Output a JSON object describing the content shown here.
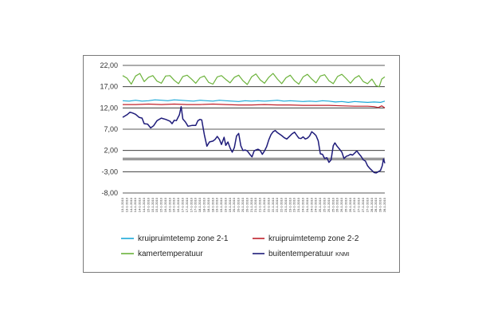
{
  "chart_data": {
    "type": "line",
    "title": "",
    "xlabel": "",
    "ylabel": "",
    "ylim": [
      -8,
      22
    ],
    "yticks": [
      "22,00",
      "17,00",
      "12,00",
      "7,00",
      "2,00",
      "-3,00",
      "-8,00"
    ],
    "ytick_values": [
      22,
      17,
      12,
      7,
      2,
      -3,
      -8
    ],
    "grid": "horizontal",
    "zero_band": 0,
    "x_start": "13-1-2010",
    "x_end": "28-1-2010",
    "x_dates": [
      "13-1-2010",
      "13-1-2010",
      "14-1-2010",
      "14-1-2010",
      "14-1-2010",
      "14-1-2010",
      "15-1-2010",
      "15-1-2010",
      "15-1-2010",
      "15-1-2010",
      "16-1-2010",
      "16-1-2010",
      "16-1-2010",
      "16-1-2010",
      "17-1-2010",
      "17-1-2010",
      "17-1-2010",
      "17-1-2010",
      "18-1-2010",
      "18-1-2010",
      "18-1-2010",
      "18-1-2010",
      "19-1-2010",
      "19-1-2010",
      "19-1-2010",
      "19-1-2010",
      "20-1-2010",
      "20-1-2010",
      "20-1-2010",
      "20-1-2010",
      "21-1-2010",
      "21-1-2010",
      "21-1-2010",
      "21-1-2010",
      "22-1-2010",
      "22-1-2010",
      "22-1-2010",
      "22-1-2010",
      "23-1-2010",
      "23-1-2010",
      "23-1-2010",
      "23-1-2010",
      "24-1-2010",
      "24-1-2010",
      "24-1-2010",
      "24-1-2010",
      "25-1-2010",
      "25-1-2010",
      "25-1-2010",
      "25-1-2010",
      "26-1-2010",
      "26-1-2010",
      "26-1-2010",
      "26-1-2010",
      "27-1-2010",
      "27-1-2010",
      "27-1-2010",
      "27-1-2010",
      "28-1-2010",
      "28-1-2010",
      "28-1-2010",
      "28-1-2010"
    ],
    "series": [
      {
        "name": "kruipruimtetemp zone 2-1",
        "color": "#1aa8d8",
        "points": [
          [
            0,
            13.7
          ],
          [
            1.5,
            13.6
          ],
          [
            3,
            13.8
          ],
          [
            4.5,
            13.6
          ],
          [
            6,
            13.7
          ],
          [
            7.5,
            13.9
          ],
          [
            9,
            13.8
          ],
          [
            10.5,
            13.7
          ],
          [
            12,
            13.9
          ],
          [
            13.5,
            13.8
          ],
          [
            15,
            13.7
          ],
          [
            16.5,
            13.6
          ],
          [
            18,
            13.8
          ],
          [
            19.5,
            13.7
          ],
          [
            21,
            13.6
          ],
          [
            22.5,
            13.8
          ],
          [
            24,
            13.7
          ],
          [
            25.5,
            13.6
          ],
          [
            27,
            13.5
          ],
          [
            28.5,
            13.7
          ],
          [
            30,
            13.6
          ],
          [
            31.5,
            13.7
          ],
          [
            33,
            13.6
          ],
          [
            34.5,
            13.7
          ],
          [
            36,
            13.8
          ],
          [
            37.5,
            13.6
          ],
          [
            39,
            13.7
          ],
          [
            40.5,
            13.6
          ],
          [
            42,
            13.5
          ],
          [
            43.5,
            13.6
          ],
          [
            45,
            13.5
          ],
          [
            46.5,
            13.7
          ],
          [
            48,
            13.6
          ],
          [
            49.5,
            13.4
          ],
          [
            51,
            13.5
          ],
          [
            52.5,
            13.3
          ],
          [
            54,
            13.5
          ],
          [
            55.5,
            13.4
          ],
          [
            57,
            13.3
          ],
          [
            58.5,
            13.4
          ],
          [
            60,
            13.3
          ],
          [
            61,
            13.6
          ]
        ]
      },
      {
        "name": "kruipruimtetemp zone 2-2",
        "color": "#c0202a",
        "points": [
          [
            0,
            12.8
          ],
          [
            3,
            12.8
          ],
          [
            6,
            12.9
          ],
          [
            9,
            12.8
          ],
          [
            12,
            12.9
          ],
          [
            15,
            12.8
          ],
          [
            18,
            12.8
          ],
          [
            21,
            12.9
          ],
          [
            24,
            12.8
          ],
          [
            27,
            12.7
          ],
          [
            30,
            12.7
          ],
          [
            33,
            12.8
          ],
          [
            36,
            12.7
          ],
          [
            39,
            12.7
          ],
          [
            42,
            12.6
          ],
          [
            45,
            12.6
          ],
          [
            48,
            12.6
          ],
          [
            51,
            12.5
          ],
          [
            54,
            12.4
          ],
          [
            57,
            12.4
          ],
          [
            58.5,
            12.3
          ],
          [
            59.5,
            12.1
          ],
          [
            60.3,
            12.5
          ],
          [
            61,
            12.0
          ]
        ]
      },
      {
        "name": "kamertemperatuur",
        "color": "#6bb23a",
        "points": [
          [
            0,
            19.6
          ],
          [
            1,
            19.0
          ],
          [
            2,
            17.6
          ],
          [
            3,
            19.5
          ],
          [
            4,
            20.1
          ],
          [
            5,
            18.2
          ],
          [
            6,
            19.2
          ],
          [
            7,
            19.6
          ],
          [
            8,
            18.3
          ],
          [
            9,
            17.8
          ],
          [
            10,
            19.5
          ],
          [
            11,
            19.6
          ],
          [
            12,
            18.5
          ],
          [
            13,
            17.7
          ],
          [
            14,
            19.4
          ],
          [
            15,
            19.7
          ],
          [
            16,
            18.8
          ],
          [
            17,
            17.8
          ],
          [
            18,
            19.1
          ],
          [
            19,
            19.5
          ],
          [
            20,
            18.0
          ],
          [
            21,
            17.6
          ],
          [
            22,
            19.3
          ],
          [
            23,
            19.6
          ],
          [
            24,
            18.7
          ],
          [
            25,
            17.9
          ],
          [
            26,
            19.2
          ],
          [
            27,
            19.7
          ],
          [
            28,
            18.4
          ],
          [
            29,
            17.5
          ],
          [
            30,
            19.3
          ],
          [
            31,
            20.0
          ],
          [
            32,
            18.6
          ],
          [
            33,
            17.8
          ],
          [
            34,
            19.2
          ],
          [
            35,
            20.1
          ],
          [
            36,
            18.8
          ],
          [
            37,
            17.7
          ],
          [
            38,
            19.1
          ],
          [
            39,
            19.7
          ],
          [
            40,
            18.4
          ],
          [
            41,
            17.6
          ],
          [
            42,
            19.3
          ],
          [
            43,
            19.9
          ],
          [
            44,
            18.8
          ],
          [
            45,
            17.9
          ],
          [
            46,
            19.5
          ],
          [
            47,
            19.8
          ],
          [
            48,
            18.4
          ],
          [
            49,
            17.7
          ],
          [
            50,
            19.4
          ],
          [
            51,
            19.9
          ],
          [
            52,
            18.9
          ],
          [
            53,
            17.8
          ],
          [
            54,
            19.0
          ],
          [
            55,
            19.6
          ],
          [
            56,
            18.2
          ],
          [
            57,
            17.7
          ],
          [
            58,
            18.8
          ],
          [
            59,
            17.2
          ],
          [
            59.7,
            17.0
          ],
          [
            60.3,
            18.8
          ],
          [
            61,
            19.3
          ]
        ]
      },
      {
        "name": "buitentemperatuur KNMI",
        "color": "#1e1b7a",
        "points": [
          [
            0,
            9.8
          ],
          [
            1,
            10.4
          ],
          [
            1.7,
            11.0
          ],
          [
            2.3,
            10.8
          ],
          [
            3,
            10.5
          ],
          [
            3.8,
            9.8
          ],
          [
            4.5,
            9.6
          ],
          [
            5,
            8.3
          ],
          [
            5.8,
            8.2
          ],
          [
            6.5,
            7.3
          ],
          [
            7.2,
            7.8
          ],
          [
            8,
            9.0
          ],
          [
            9,
            9.6
          ],
          [
            10,
            9.3
          ],
          [
            11,
            8.9
          ],
          [
            11.5,
            8.3
          ],
          [
            12,
            9.1
          ],
          [
            12.5,
            9.0
          ],
          [
            13.2,
            10.4
          ],
          [
            13.6,
            12.3
          ],
          [
            14,
            9.4
          ],
          [
            14.6,
            8.7
          ],
          [
            15.2,
            7.7
          ],
          [
            16.2,
            7.9
          ],
          [
            17,
            7.9
          ],
          [
            17.5,
            9.0
          ],
          [
            18,
            9.3
          ],
          [
            18.4,
            9.2
          ],
          [
            19,
            5.7
          ],
          [
            19.6,
            3.0
          ],
          [
            20.2,
            4.0
          ],
          [
            21,
            4.2
          ],
          [
            21.5,
            4.6
          ],
          [
            22,
            5.3
          ],
          [
            22.5,
            4.6
          ],
          [
            23,
            3.4
          ],
          [
            23.6,
            5.1
          ],
          [
            24,
            3.2
          ],
          [
            24.5,
            4.0
          ],
          [
            25,
            2.6
          ],
          [
            25.5,
            1.6
          ],
          [
            26,
            2.7
          ],
          [
            26.5,
            5.4
          ],
          [
            27,
            6.0
          ],
          [
            27.5,
            3.1
          ],
          [
            28,
            2.0
          ],
          [
            28.5,
            2.1
          ],
          [
            29,
            1.9
          ],
          [
            29.6,
            1.1
          ],
          [
            30.1,
            0.5
          ],
          [
            30.6,
            1.9
          ],
          [
            31,
            2.1
          ],
          [
            31.5,
            2.3
          ],
          [
            32,
            2.0
          ],
          [
            32.5,
            1.1
          ],
          [
            33,
            1.9
          ],
          [
            33.5,
            2.9
          ],
          [
            34,
            4.5
          ],
          [
            34.5,
            5.7
          ],
          [
            35,
            6.4
          ],
          [
            35.5,
            6.7
          ],
          [
            36,
            6.2
          ],
          [
            37,
            5.5
          ],
          [
            37.6,
            5.0
          ],
          [
            38.2,
            4.7
          ],
          [
            38.8,
            5.3
          ],
          [
            39.4,
            5.9
          ],
          [
            40,
            6.3
          ],
          [
            40.5,
            5.6
          ],
          [
            41,
            4.9
          ],
          [
            41.5,
            4.8
          ],
          [
            42,
            5.2
          ],
          [
            42.5,
            4.7
          ],
          [
            43,
            4.9
          ],
          [
            43.5,
            5.4
          ],
          [
            44,
            6.4
          ],
          [
            44.5,
            6.0
          ],
          [
            45,
            5.5
          ],
          [
            45.5,
            4.3
          ],
          [
            46,
            1.2
          ],
          [
            46.5,
            1.1
          ],
          [
            47,
            0.1
          ],
          [
            47.5,
            0.3
          ],
          [
            48,
            -0.8
          ],
          [
            48.5,
            -0.2
          ],
          [
            49,
            3.1
          ],
          [
            49.4,
            3.8
          ],
          [
            49.9,
            3.0
          ],
          [
            50.4,
            2.4
          ],
          [
            51,
            1.6
          ],
          [
            51.5,
            0.1
          ],
          [
            52,
            0.6
          ],
          [
            52.5,
            0.8
          ],
          [
            53,
            1.1
          ],
          [
            53.5,
            0.9
          ],
          [
            54,
            1.4
          ],
          [
            54.5,
            1.9
          ],
          [
            55,
            1.2
          ],
          [
            55.5,
            0.6
          ],
          [
            56,
            -0.2
          ],
          [
            56.5,
            -0.5
          ],
          [
            57,
            -1.6
          ],
          [
            57.5,
            -2.2
          ],
          [
            58,
            -2.7
          ],
          [
            58.5,
            -3.2
          ],
          [
            59,
            -3.3
          ],
          [
            59.5,
            -3.0
          ],
          [
            60,
            -2.7
          ],
          [
            60.4,
            -1.6
          ],
          [
            60.7,
            0.0
          ],
          [
            61,
            -1.0
          ]
        ]
      }
    ],
    "legend": {
      "placement": "bottom",
      "entries": [
        {
          "label": "kruipruimtetemp zone 2-1",
          "color": "#1aa8d8"
        },
        {
          "label": "kruipruimtetemp zone 2-2",
          "color": "#c0202a"
        },
        {
          "label": "kamertemperatuur",
          "color": "#6bb23a"
        },
        {
          "label": "buitentemperatuur",
          "suffix": "KNMI",
          "color": "#1e1b7a"
        }
      ]
    }
  }
}
